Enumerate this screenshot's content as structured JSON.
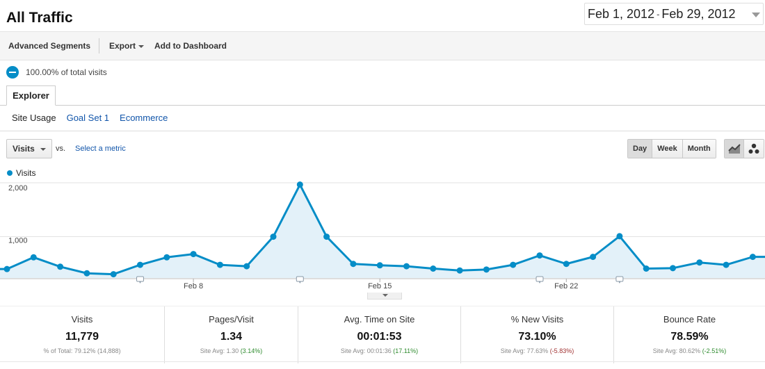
{
  "header": {
    "title": "All Traffic",
    "date_start": "Feb 1, 2012",
    "date_sep": "-",
    "date_end": "Feb 29, 2012"
  },
  "toolbar": {
    "advanced_segments": "Advanced Segments",
    "export": "Export",
    "add_to_dashboard": "Add to Dashboard"
  },
  "segment": {
    "label": "100.00% of total visits"
  },
  "tabs": {
    "explorer": "Explorer"
  },
  "subtabs": [
    "Site Usage",
    "Goal Set 1",
    "Ecommerce"
  ],
  "metric": {
    "selected": "Visits",
    "vs": "vs.",
    "select_metric": "Select a metric"
  },
  "periods": [
    "Day",
    "Week",
    "Month"
  ],
  "colors": {
    "accent": "#058dc7",
    "fill": "#e3f1f9",
    "positive": "#2e8b2e",
    "negative": "#a03030"
  },
  "chart_data": {
    "type": "area",
    "series": [
      {
        "name": "Visits",
        "values": [
          190,
          440,
          240,
          100,
          80,
          280,
          440,
          510,
          280,
          250,
          880,
          1990,
          880,
          300,
          270,
          250,
          200,
          160,
          180,
          280,
          480,
          300,
          450,
          890,
          200,
          210,
          330,
          280,
          450
        ]
      }
    ],
    "x": [
      "Feb 1",
      "Feb 2",
      "Feb 3",
      "Feb 4",
      "Feb 5",
      "Feb 6",
      "Feb 7",
      "Feb 8",
      "Feb 9",
      "Feb 10",
      "Feb 11",
      "Feb 12",
      "Feb 13",
      "Feb 14",
      "Feb 15",
      "Feb 16",
      "Feb 17",
      "Feb 18",
      "Feb 19",
      "Feb 20",
      "Feb 21",
      "Feb 22",
      "Feb 23",
      "Feb 24",
      "Feb 25",
      "Feb 26",
      "Feb 27",
      "Feb 28",
      "Feb 29"
    ],
    "x_tick_labels": [
      "Feb 8",
      "Feb 15",
      "Feb 22"
    ],
    "y_tick_labels": [
      "2,000",
      "1,000"
    ],
    "y_ticks": [
      2000,
      1000
    ],
    "ylim": [
      0,
      2000
    ],
    "annotation_days": [
      "Feb 6",
      "Feb 12",
      "Feb 21",
      "Feb 24"
    ],
    "grid": true
  },
  "summary": [
    {
      "label": "Visits",
      "value": "11,779",
      "sub_prefix": "% of Total: 79.12%",
      "sub_paren": "(14,888)",
      "sub_tone": "neutral"
    },
    {
      "label": "Pages/Visit",
      "value": "1.34",
      "sub_prefix": "Site Avg: 1.30",
      "sub_paren": "(3.14%)",
      "sub_tone": "positive"
    },
    {
      "label": "Avg. Time on Site",
      "value": "00:01:53",
      "sub_prefix": "Site Avg: 00:01:36",
      "sub_paren": "(17.11%)",
      "sub_tone": "positive"
    },
    {
      "label": "% New Visits",
      "value": "73.10%",
      "sub_prefix": "Site Avg: 77.63%",
      "sub_paren": "(-5.83%)",
      "sub_tone": "negative"
    },
    {
      "label": "Bounce Rate",
      "value": "78.59%",
      "sub_prefix": "Site Avg: 80.62%",
      "sub_paren": "(-2.51%)",
      "sub_tone": "positive"
    }
  ]
}
